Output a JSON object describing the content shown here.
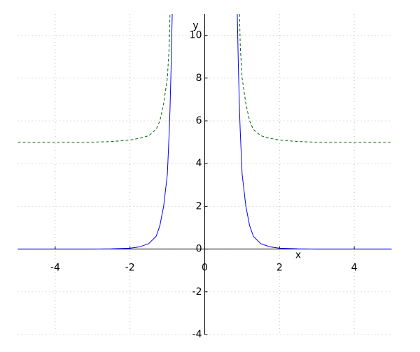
{
  "chart_data": {
    "type": "line",
    "x_label": "x",
    "y_label": "y",
    "x": [
      -5,
      -3,
      -2.5,
      -2,
      -1.75,
      -1.5,
      -1.3,
      -1.2,
      -1.1,
      -1,
      -0.95,
      -0.93,
      -0.9,
      -0.87,
      0,
      0.87,
      0.9,
      0.93,
      0.95,
      1,
      1.1,
      1.2,
      1.3,
      1.5,
      1.75,
      2,
      2.5,
      3,
      5
    ],
    "series": [
      {
        "color": "#0000ff",
        "dash": "solid",
        "values": [
          0,
          0,
          0.01,
          0.04,
          0.1,
          0.25,
          0.6,
          1.1,
          2,
          3.5,
          5.5,
          6.5,
          8.5,
          11,
          null,
          11,
          8.5,
          6.5,
          5.5,
          3.5,
          2,
          1.1,
          0.6,
          0.25,
          0.1,
          0.04,
          0.01,
          0,
          0
        ]
      },
      {
        "color": "#006400",
        "dash": "dashed",
        "values": [
          5,
          5,
          5.03,
          5.1,
          5.18,
          5.3,
          5.6,
          6,
          6.8,
          8,
          9.5,
          11,
          null,
          null,
          null,
          null,
          null,
          11,
          9.5,
          8,
          6.8,
          6,
          5.6,
          5.3,
          5.18,
          5.1,
          5.03,
          5,
          5
        ]
      }
    ],
    "xlim": [
      -5,
      5
    ],
    "ylim": [
      -4,
      11
    ],
    "xticks": [
      -4,
      -2,
      0,
      2,
      4
    ],
    "yticks": [
      -4,
      -2,
      0,
      2,
      4,
      6,
      8,
      10
    ],
    "grid": true
  }
}
